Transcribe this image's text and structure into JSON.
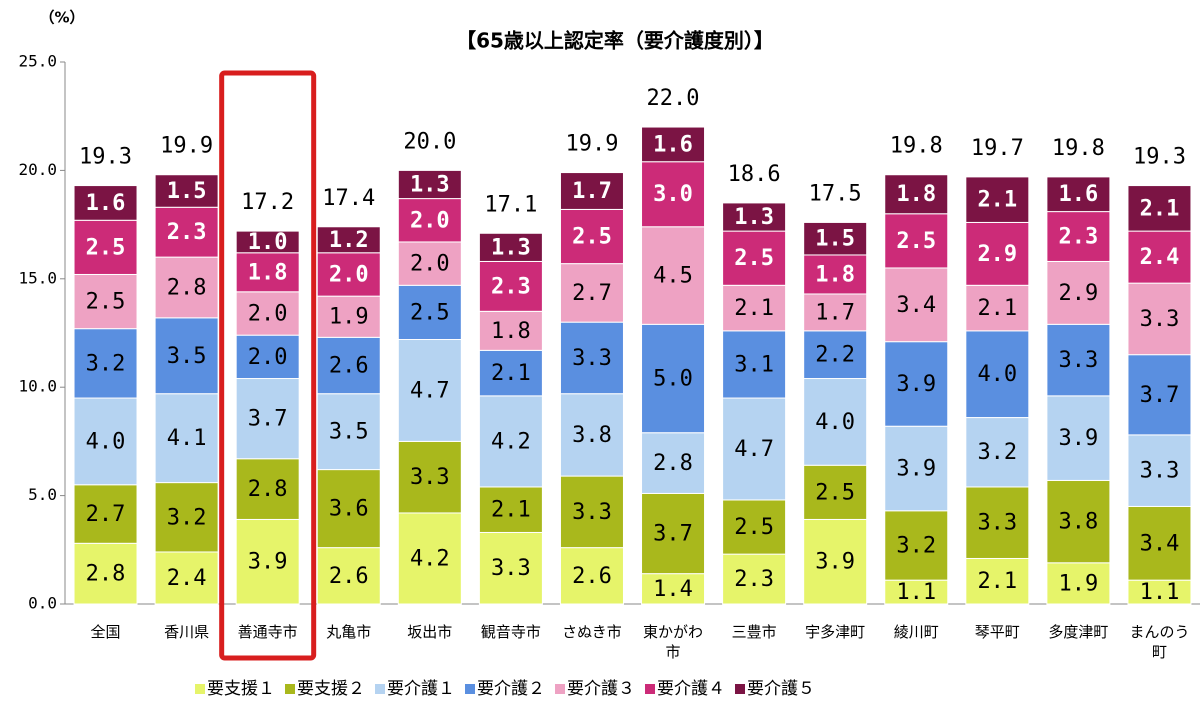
{
  "chart_data": {
    "type": "stacked_bar",
    "title": "【65歳以上認定率（要介護度別）】",
    "y_label": "（%）",
    "categories": [
      "全国",
      "香川県",
      "善通寺市",
      "丸亀市",
      "坂出市",
      "観音寺市",
      "さぬき市",
      "東かがわ市",
      "三豊市",
      "宇多津町",
      "綾川町",
      "琴平町",
      "多度津町",
      "まんのう町"
    ],
    "series": [
      {
        "name": "要支援１",
        "color": "#e6f46a",
        "values": [
          2.8,
          2.4,
          3.9,
          2.6,
          4.2,
          3.3,
          2.6,
          1.4,
          2.3,
          3.9,
          1.1,
          2.1,
          1.9,
          1.1
        ],
        "value_labels": [
          "2.8",
          "2.4",
          "3.9",
          "2.6",
          "4.2",
          "3.3",
          "2.6",
          "1.4",
          "2.3",
          "3.9",
          "1.1",
          "2.1",
          "1.9",
          "1.1"
        ]
      },
      {
        "name": "要支援２",
        "color": "#a9b81c",
        "values": [
          2.7,
          3.2,
          2.8,
          3.6,
          3.3,
          2.1,
          3.3,
          3.7,
          2.5,
          2.5,
          3.2,
          3.3,
          3.8,
          3.4
        ],
        "value_labels": [
          "2.7",
          "3.2",
          "2.8",
          "3.6",
          "3.3",
          "2.1",
          "3.3",
          "3.7",
          "2.5",
          "2.5",
          "3.2",
          "3.3",
          "3.8",
          "3.4"
        ]
      },
      {
        "name": "要介護１",
        "color": "#b5d3f1",
        "values": [
          4.0,
          4.1,
          3.7,
          3.5,
          4.7,
          4.2,
          3.8,
          2.8,
          4.7,
          4.0,
          3.9,
          3.2,
          3.9,
          3.3
        ],
        "value_labels": [
          "4.0",
          "4.1",
          "3.7",
          "3.5",
          "4.7",
          "4.2",
          "3.8",
          "2.8",
          "4.7",
          "4.0",
          "3.9",
          "3.2",
          "3.9",
          "3.3"
        ]
      },
      {
        "name": "要介護２",
        "color": "#5a8fe0",
        "values": [
          3.2,
          3.5,
          2.0,
          2.6,
          2.5,
          2.1,
          3.3,
          5.0,
          3.1,
          2.2,
          3.9,
          4.0,
          3.3,
          3.7
        ],
        "value_labels": [
          "3.2",
          "3.5",
          "2.0",
          "2.6",
          "2.5",
          "2.1",
          "3.3",
          "5.0",
          "3.1",
          "2.2",
          "3.9",
          "4.0",
          "3.3",
          "3.7"
        ]
      },
      {
        "name": "要介護３",
        "color": "#eea2c3",
        "values": [
          2.5,
          2.8,
          2.0,
          1.9,
          2.0,
          1.8,
          2.7,
          4.5,
          2.1,
          1.7,
          3.4,
          2.1,
          2.9,
          3.3
        ],
        "value_labels": [
          "2.5",
          "2.8",
          "2.0",
          "1.9",
          "2.0",
          "1.8",
          "2.7",
          "4.5",
          "2.1",
          "1.7",
          "3.4",
          "2.1",
          "2.9",
          "3.3"
        ]
      },
      {
        "name": "要介護４",
        "color": "#cc2b78",
        "values": [
          2.5,
          2.3,
          1.8,
          2.0,
          2.0,
          2.3,
          2.5,
          3.0,
          2.5,
          1.8,
          2.5,
          2.9,
          2.3,
          2.4
        ],
        "value_labels": [
          "2.5",
          "2.3",
          "1.8",
          "2.0",
          "2.0",
          "2.3",
          "2.5",
          "3.0",
          "2.5",
          "1.8",
          "2.5",
          "2.9",
          "2.3",
          "2.4"
        ]
      },
      {
        "name": "要介護５",
        "color": "#7b1444",
        "values": [
          1.6,
          1.5,
          1.0,
          1.2,
          1.3,
          1.3,
          1.7,
          1.6,
          1.3,
          1.5,
          1.8,
          2.1,
          1.6,
          2.1
        ],
        "value_labels": [
          "1.6",
          "1.5",
          "1.0",
          "1.2",
          "1.3",
          "1.3",
          "1.7",
          "1.6",
          "1.3",
          "1.5",
          "1.8",
          "2.1",
          "1.6",
          "2.1"
        ]
      }
    ],
    "totals": [
      19.3,
      19.9,
      17.2,
      17.4,
      20.0,
      17.1,
      19.9,
      22.0,
      18.6,
      17.5,
      19.8,
      19.7,
      19.8,
      19.3
    ],
    "total_labels": [
      "19.3",
      "19.9",
      "17.2",
      "17.4",
      "20.0",
      "17.1",
      "19.9",
      "22.0",
      "18.6",
      "17.5",
      "19.8",
      "19.7",
      "19.8",
      "19.3"
    ],
    "ylim": [
      0,
      25
    ],
    "yticks": [
      {
        "value": 0,
        "label": "0.0"
      },
      {
        "value": 5,
        "label": "5.0"
      },
      {
        "value": 10,
        "label": "10.0"
      },
      {
        "value": 15,
        "label": "15.0"
      },
      {
        "value": 20,
        "label": "20.0"
      },
      {
        "value": 25,
        "label": "25.0"
      }
    ],
    "highlight": 2,
    "legend": "bottom"
  }
}
